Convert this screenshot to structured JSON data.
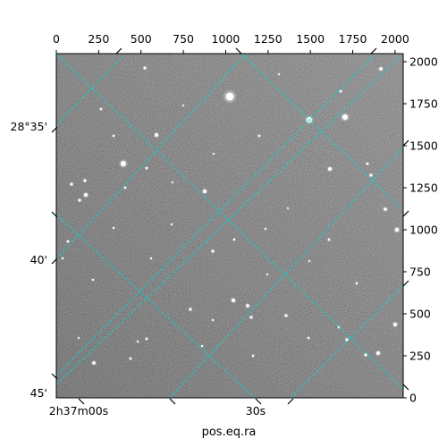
{
  "chart_data": {
    "type": "image",
    "title": "",
    "xlabel": "pos.eq.ra",
    "ylabel": "",
    "pixel_axes": {
      "x_range": [
        0,
        2048
      ],
      "y_range": [
        0,
        2048
      ],
      "x_ticks": [
        0,
        250,
        500,
        750,
        1000,
        1250,
        1500,
        1750,
        2000
      ],
      "y_ticks": [
        0,
        250,
        500,
        750,
        1000,
        1250,
        1500,
        1750,
        2000
      ]
    },
    "world_axes": {
      "ra_tick_labels": [
        "2h37m00s",
        "30s"
      ],
      "dec_tick_labels": [
        "28°35'",
        "40'",
        "45'"
      ]
    },
    "grid": true,
    "grid_color": "#00d8d8",
    "image_colormap": "gray"
  }
}
